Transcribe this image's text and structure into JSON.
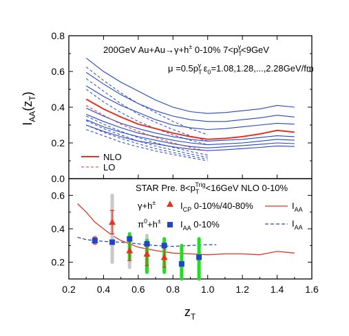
{
  "chart_data": [
    {
      "type": "line",
      "panel": "top",
      "ylabel_main": "I",
      "ylabel_sub": "AA",
      "ylabel_arg": "(z",
      "ylabel_argsub": "T",
      "ylabel_close": ")",
      "ylim": [
        0.0,
        0.8
      ],
      "xlim": [
        0.2,
        1.6
      ],
      "yticks": [
        "0.0",
        "0.2",
        "0.4",
        "0.6",
        "0.8"
      ],
      "annotation_line1": "200GeV  Au+Au→γ+h",
      "annotation_line1_sup": "±",
      "annotation_line1_tail": "  0-10%  7<p",
      "annotation_line1_sub": "T",
      "annotation_line1_sup2": "γ",
      "annotation_line1_end": "<9GeV",
      "annotation_line2_a": "μ =0.5p",
      "annotation_line2_sub": "T",
      "annotation_line2_sup": "γ",
      "annotation_line2_b": "  ε",
      "annotation_line2_sub2": "0",
      "annotation_line2_c": "=1.08,1.28,...,2.28GeV/fm",
      "legend": [
        {
          "label": "NLO",
          "color": "#e8321e",
          "dash": false
        },
        {
          "label": "LO",
          "color": "#e8321e",
          "dash": true
        }
      ],
      "nlo_x": [
        0.3,
        0.4,
        0.5,
        0.6,
        0.7,
        0.8,
        0.9,
        1.0,
        1.1,
        1.2,
        1.3,
        1.4,
        1.5
      ],
      "nlo_bands": [
        [
          0.675,
          0.6,
          0.54,
          0.49,
          0.44,
          0.4,
          0.375,
          0.365,
          0.37,
          0.38,
          0.39,
          0.41,
          0.4
        ],
        [
          0.595,
          0.53,
          0.47,
          0.42,
          0.38,
          0.35,
          0.33,
          0.32,
          0.32,
          0.33,
          0.34,
          0.355,
          0.345
        ],
        [
          0.52,
          0.46,
          0.41,
          0.37,
          0.33,
          0.3,
          0.285,
          0.275,
          0.28,
          0.29,
          0.3,
          0.31,
          0.305
        ],
        [
          0.395,
          0.35,
          0.31,
          0.28,
          0.255,
          0.235,
          0.22,
          0.21,
          0.215,
          0.22,
          0.23,
          0.24,
          0.235
        ],
        [
          0.36,
          0.32,
          0.285,
          0.255,
          0.235,
          0.215,
          0.2,
          0.19,
          0.195,
          0.2,
          0.21,
          0.22,
          0.215
        ],
        [
          0.33,
          0.29,
          0.26,
          0.235,
          0.215,
          0.195,
          0.18,
          0.172,
          0.178,
          0.185,
          0.192,
          0.2,
          0.196
        ],
        [
          0.3,
          0.265,
          0.235,
          0.21,
          0.195,
          0.178,
          0.165,
          0.157,
          0.162,
          0.168,
          0.175,
          0.183,
          0.18
        ]
      ],
      "nlo_red": [
        0.445,
        0.39,
        0.345,
        0.305,
        0.28,
        0.255,
        0.235,
        0.22,
        0.225,
        0.235,
        0.25,
        0.27,
        0.26
      ],
      "lo_x": [
        0.3,
        0.4,
        0.5,
        0.6,
        0.7,
        0.8,
        0.9,
        1.0
      ],
      "lo_bands": [
        [
          0.625,
          0.55,
          0.48,
          0.42,
          0.37,
          0.32,
          0.28,
          0.245
        ],
        [
          0.56,
          0.49,
          0.42,
          0.36,
          0.315,
          0.275,
          0.24,
          0.21
        ],
        [
          0.5,
          0.43,
          0.37,
          0.32,
          0.28,
          0.245,
          0.215,
          0.19
        ],
        [
          0.35,
          0.305,
          0.265,
          0.23,
          0.2,
          0.175,
          0.152,
          0.132
        ],
        [
          0.325,
          0.28,
          0.245,
          0.21,
          0.182,
          0.16,
          0.138,
          0.12
        ],
        [
          0.3,
          0.26,
          0.225,
          0.195,
          0.168,
          0.146,
          0.127,
          0.11
        ],
        [
          0.275,
          0.24,
          0.205,
          0.178,
          0.155,
          0.135,
          0.117,
          0.1
        ]
      ],
      "lo_red": [
        0.41,
        0.355,
        0.305,
        0.265,
        0.23,
        0.2,
        0.175,
        0.155
      ]
    },
    {
      "type": "scatter",
      "panel": "bottom",
      "xlabel_main": "z",
      "xlabel_sub": "T",
      "xlim": [
        0.2,
        1.6
      ],
      "ylim": [
        0.1,
        0.7
      ],
      "xticks": [
        "0.2",
        "0.4",
        "0.6",
        "0.8",
        "1.0",
        "1.2",
        "1.4",
        "1.6"
      ],
      "yticks": [
        "0.2",
        "0.4",
        "0.6"
      ],
      "header_a": "STAR Pre. 8<p",
      "header_sub": "T",
      "header_sup": "Trig",
      "header_b": "<16GeV  NLO 0-10%",
      "label_gamma_a": "γ+h",
      "label_gamma_sup": "±",
      "label_pi_a": "π",
      "label_pi_sup1": "0",
      "label_pi_b": "+h",
      "label_pi_sup2": "±",
      "legend_icp_a": "I",
      "legend_icp_sub": "CP",
      "legend_icp_b": " 0-10%/40-80%",
      "legend_iaa_a": "I",
      "legend_iaa_sub": "AA",
      "legend_iaa_b": " 0-10%",
      "curve_label_main": "I",
      "curve_label_sub": "AA",
      "gamma_icp": {
        "color": "#e8321e",
        "x": [
          0.35,
          0.45,
          0.55,
          0.65,
          0.75
        ],
        "y": [
          0.33,
          0.44,
          0.27,
          0.25,
          0.23
        ],
        "err": [
          0.02,
          0.07,
          0.06,
          0.07,
          0.06
        ]
      },
      "gamma_iaa": {
        "color": "#2244cc",
        "x": [
          0.35,
          0.45,
          0.55,
          0.65,
          0.75,
          0.85,
          0.95
        ],
        "y": [
          0.33,
          0.32,
          0.34,
          0.31,
          0.3,
          0.19,
          0.23
        ]
      },
      "sys_grey": {
        "color": "#c8c8c8",
        "x": [
          0.35,
          0.45,
          0.55,
          0.65,
          0.75
        ],
        "low": [
          0.31,
          0.2,
          0.17,
          0.14,
          0.14
        ],
        "high": [
          0.35,
          0.6,
          0.36,
          0.36,
          0.33
        ]
      },
      "sys_green": {
        "color": "#1ee01e",
        "x": [
          0.55,
          0.65,
          0.75,
          0.85,
          0.95
        ],
        "low": [
          0.22,
          0.14,
          0.14,
          0.06,
          0.1
        ],
        "high": [
          0.37,
          0.33,
          0.34,
          0.3,
          0.34
        ]
      },
      "curve_red": {
        "color": "#e8321e",
        "x": [
          0.25,
          0.3,
          0.35,
          0.4,
          0.45,
          0.5,
          0.55,
          0.6,
          0.7,
          0.8,
          0.9,
          1.0,
          1.1,
          1.2,
          1.3,
          1.4,
          1.5
        ],
        "y": [
          0.55,
          0.5,
          0.44,
          0.4,
          0.36,
          0.33,
          0.31,
          0.29,
          0.27,
          0.255,
          0.25,
          0.245,
          0.25,
          0.25,
          0.245,
          0.265,
          0.255
        ]
      },
      "curve_blue": {
        "color": "#2244cc",
        "x": [
          0.25,
          0.3,
          0.35,
          0.4,
          0.5,
          0.6,
          0.7,
          0.8,
          0.9,
          1.0,
          1.05
        ],
        "y": [
          0.35,
          0.335,
          0.33,
          0.325,
          0.32,
          0.31,
          0.3,
          0.295,
          0.3,
          0.305,
          0.305
        ]
      }
    }
  ]
}
